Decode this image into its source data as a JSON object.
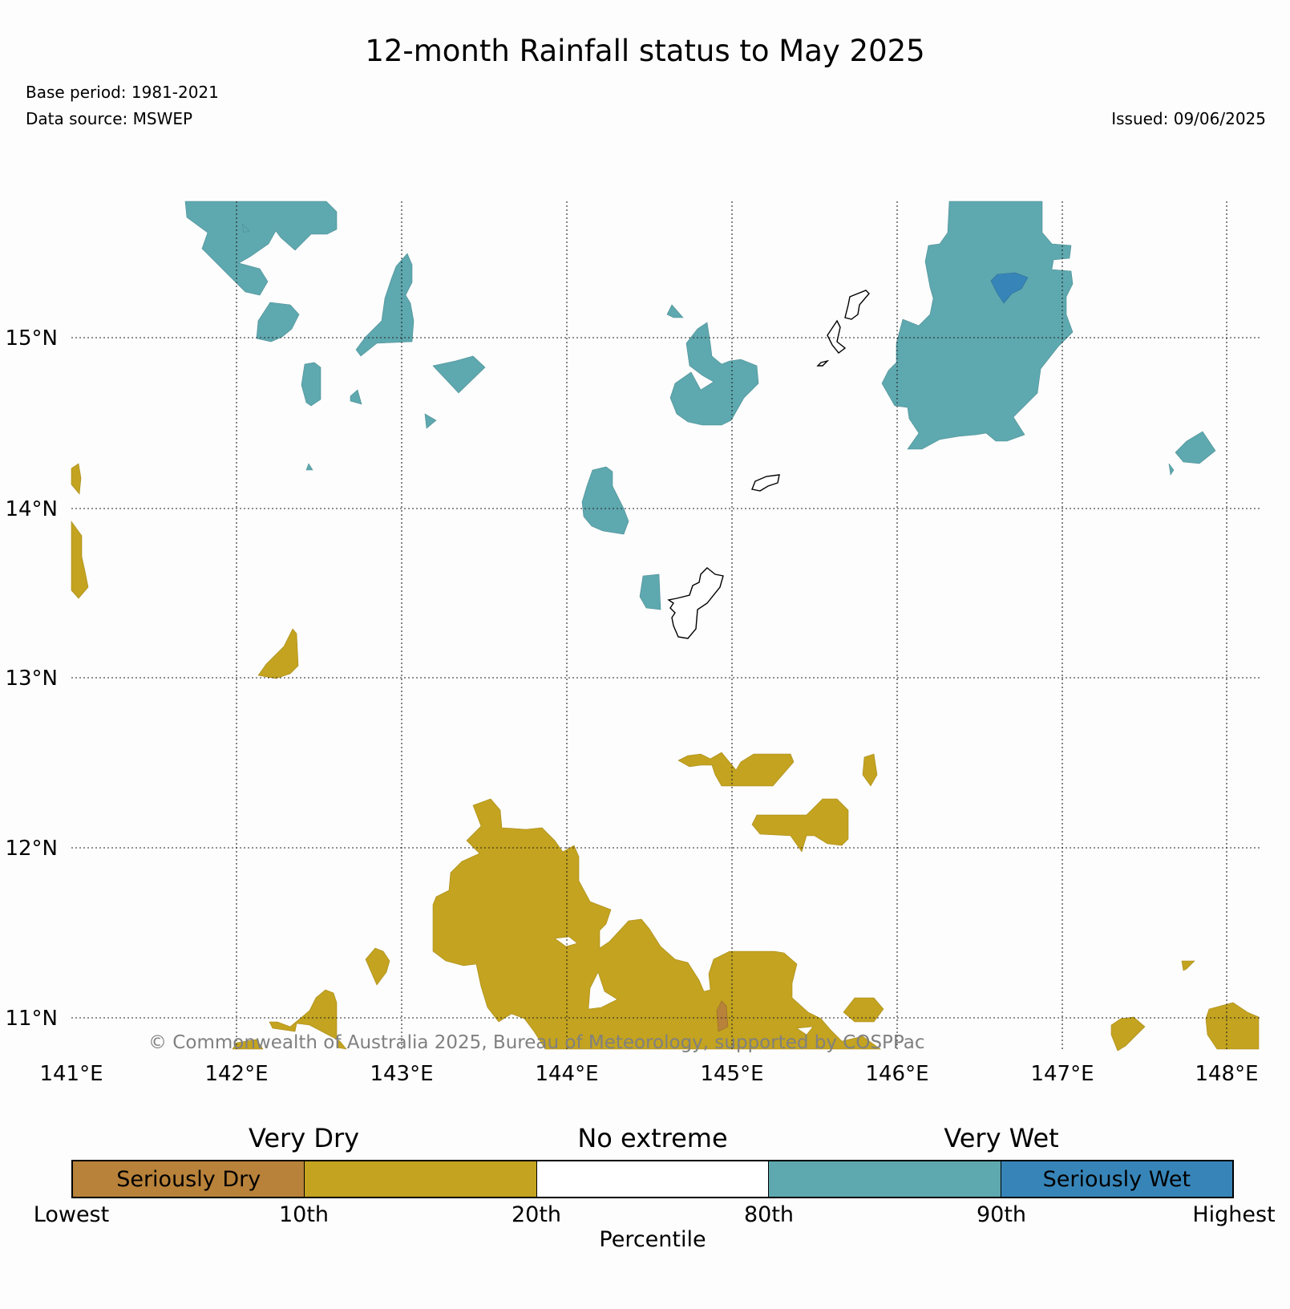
{
  "title": "12-month Rainfall status to May 2025",
  "base_period": "Base period: 1981-2021",
  "data_source": "Data source: MSWEP",
  "issued": "Issued: 09/06/2025",
  "copyright": "© Commonwealth of Australia 2025, Bureau of Meteorology, supported by COSPPac",
  "map": {
    "lon_ticks": [
      "141°E",
      "142°E",
      "143°E",
      "144°E",
      "145°E",
      "146°E",
      "147°E",
      "148°E"
    ],
    "lat_ticks": [
      "15°N",
      "14°N",
      "13°N",
      "12°N",
      "11°N"
    ],
    "lon_range": [
      141,
      148.2
    ],
    "lat_range": [
      10.8,
      15.8
    ],
    "grid": true,
    "colors": {
      "seriously_dry": "#b8823a",
      "very_dry": "#c3a31f",
      "very_wet": "#5ea8af",
      "seriously_wet": "#3785b8"
    }
  },
  "legend": {
    "group_labels": [
      "Very Dry",
      "No extreme",
      "Very Wet"
    ],
    "segments": [
      {
        "label": "Seriously Dry",
        "color": "#b8823a"
      },
      {
        "label": "",
        "color": "#c3a31f"
      },
      {
        "label": "",
        "color": "#ffffff"
      },
      {
        "label": "",
        "color": "#5ea8af"
      },
      {
        "label": "Seriously Wet",
        "color": "#3785b8"
      }
    ],
    "ticks": [
      "Lowest",
      "10th",
      "20th",
      "80th",
      "90th",
      "Highest"
    ],
    "axis_label": "Percentile"
  }
}
